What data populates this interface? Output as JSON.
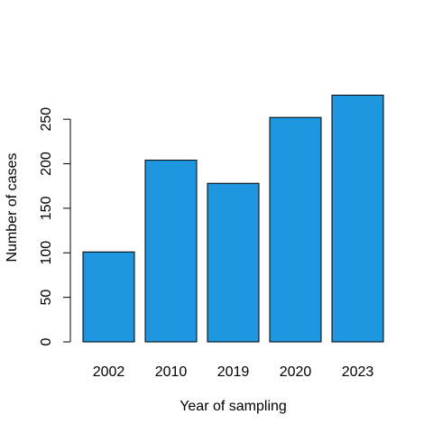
{
  "chart_data": {
    "type": "bar",
    "categories": [
      "2002",
      "2010",
      "2019",
      "2020",
      "2023"
    ],
    "values": [
      101,
      204,
      178,
      252,
      277
    ],
    "xlabel": "Year of sampling",
    "ylabel": "Number of cases",
    "ylim": [
      0,
      277
    ],
    "yticks": [
      0,
      50,
      100,
      150,
      200,
      250
    ],
    "grid": false,
    "bar_color": "#1E96E0",
    "bar_border_color": "#000000"
  }
}
